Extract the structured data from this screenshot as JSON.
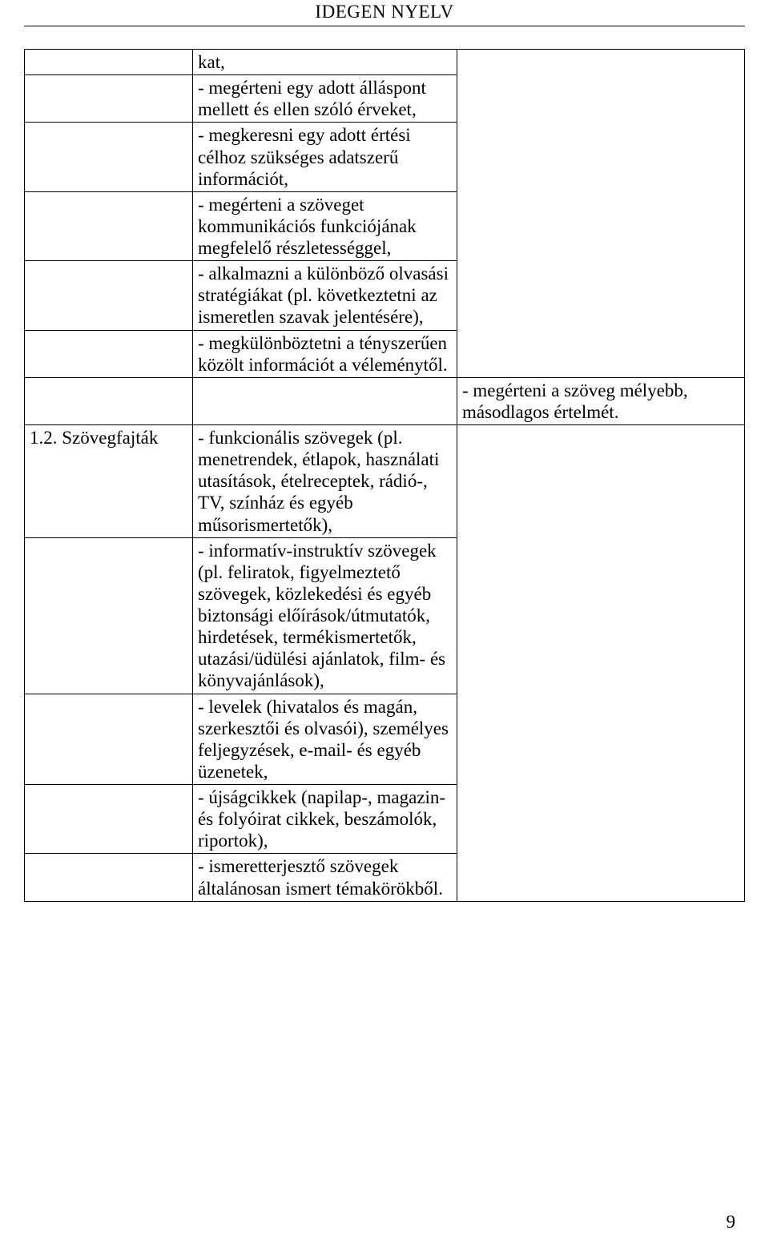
{
  "headerTitle": "IDEGEN NYELV",
  "rows": [
    {
      "c1": "",
      "c2": "kat,",
      "c3": ""
    },
    {
      "c1": "",
      "c2": " - megérteni egy adott álláspont mellett és ellen szóló érveket,",
      "c3": ""
    },
    {
      "c1": "",
      "c2": " - megkeresni egy adott értési célhoz szükséges adatszerű információt,",
      "c3": ""
    },
    {
      "c1": "",
      "c2": " - megérteni a szöveget kommunikációs funkciójának megfelelő részletességgel,",
      "c3": ""
    },
    {
      "c1": "",
      "c2": " - alkalmazni a különböző olvasási stratégiákat (pl. következtetni az ismeretlen szavak jelentésére),",
      "c3": ""
    },
    {
      "c1": "",
      "c2": " - megkülönböztetni a tényszerűen közölt információt a véleménytől.",
      "c3": ""
    },
    {
      "c1": "",
      "c2": "",
      "c3": " - megérteni a szöveg mélyebb, másodlagos értelmét."
    },
    {
      "c1": "1.2. Szövegfajták",
      "c2": " - funkcionális szövegek (pl. menetrendek, étlapok, használati utasítások, ételreceptek, rádió-, TV, színház és egyéb műsorismertetők),",
      "c3": ""
    },
    {
      "c1": "",
      "c2": " - informatív-instruktív szövegek (pl. feliratok, figyelmeztető szövegek, közlekedési és egyéb biztonsági előírások/útmutatók, hirdetések, termékismertetők, utazási/üdülési ajánlatok, film- és könyvajánlások),",
      "c3": ""
    },
    {
      "c1": "",
      "c2": " - levelek (hivatalos és magán, szerkesztői és olvasói), személyes feljegyzések, e-mail- és egyéb üzenetek,",
      "c3": ""
    },
    {
      "c1": "",
      "c2": " - újságcikkek (napilap-, magazin- és folyóirat cikkek, beszámolók, riportok),",
      "c3": ""
    },
    {
      "c1": "",
      "c2": " - ismeretterjesztő szövegek általánosan ismert témakörökből.",
      "c3": ""
    }
  ],
  "col3Rowspans": [
    6,
    1,
    5
  ],
  "pageNumber": "9"
}
